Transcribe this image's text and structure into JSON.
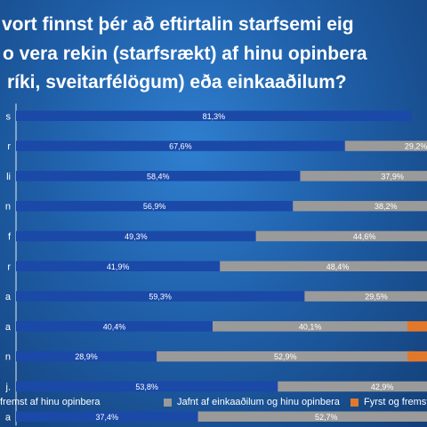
{
  "title_lines": [
    "vort finnst þér að eftirtalin starfsemi eig",
    "o vera rekin (starfsrækt) af hinu opinbera",
    "ríki, sveitarfélögum) eða einkaaðilum?"
  ],
  "colors": {
    "public": "#1a49a8",
    "equal": "#9a9a9a",
    "private": "#e3782a",
    "gridline": "#ffffff"
  },
  "legend": [
    {
      "label": "fremst af hinu opinbera",
      "color": "#1a49a8"
    },
    {
      "label": "Jafnt af einkaaðilum og hinu opinbera",
      "color": "#9a9a9a"
    },
    {
      "label": "Fyrst og fremst af ein",
      "color": "#e3782a"
    }
  ],
  "chart_data": {
    "type": "bar",
    "orientation": "horizontal",
    "stacked": true,
    "categories": [
      "s",
      "r",
      "li",
      "n",
      "f",
      "r",
      "a",
      "a",
      "n",
      "j.",
      "a"
    ],
    "series": [
      {
        "name": "fremst af hinu opinbera",
        "values": [
          81.3,
          67.6,
          58.4,
          56.9,
          49.3,
          41.9,
          59.3,
          40.4,
          28.9,
          53.8,
          37.4
        ],
        "labels": [
          "81,3%",
          "67,6%",
          "58,4%",
          "56,9%",
          "49,3%",
          "41,9%",
          "59,3%",
          "40,4%",
          "28,9%",
          "53,8%",
          "37,4%"
        ]
      },
      {
        "name": "Jafnt af einkaaðilum og hinu opinbera",
        "values": [
          null,
          29.2,
          37.9,
          38.2,
          44.6,
          48.4,
          29.5,
          40.1,
          52.9,
          42.9,
          52.7
        ],
        "labels": [
          "",
          "29,2%",
          "37,9%",
          "38,2%",
          "44,6%",
          "48,4%",
          "29,5%",
          "40,1%",
          "52,9%",
          "42,9%",
          "52,7%"
        ]
      },
      {
        "name": "Fyrst og fremst af ein",
        "values": [
          null,
          null,
          null,
          null,
          null,
          null,
          null,
          null,
          null,
          null,
          null
        ],
        "labels": [
          "",
          "",
          "",
          "",
          "",
          "",
          "",
          "",
          "",
          "",
          ""
        ]
      }
    ],
    "xlim": [
      0,
      100
    ],
    "legend_position": "bottom"
  }
}
